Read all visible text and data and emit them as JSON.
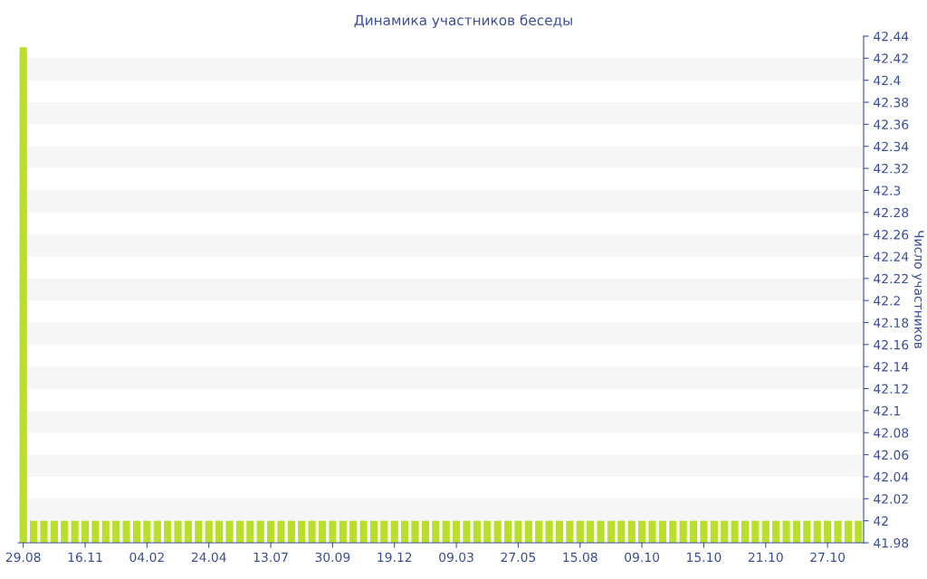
{
  "chart_data": {
    "type": "bar",
    "title": "Динамика участников беседы",
    "ylabel": "Число участников",
    "categories": [
      "29.08",
      null,
      null,
      null,
      null,
      null,
      "16.11",
      null,
      null,
      null,
      null,
      null,
      "04.02",
      null,
      null,
      null,
      null,
      null,
      "24.04",
      null,
      null,
      null,
      null,
      null,
      "13.07",
      null,
      null,
      null,
      null,
      null,
      "30.09",
      null,
      null,
      null,
      null,
      null,
      "19.12",
      null,
      null,
      null,
      null,
      null,
      "09.03",
      null,
      null,
      null,
      null,
      null,
      "27.05",
      null,
      null,
      null,
      null,
      null,
      "15.08",
      null,
      null,
      null,
      null,
      null,
      "09.10",
      null,
      null,
      null,
      null,
      null,
      "15.10",
      null,
      null,
      null,
      null,
      null,
      "21.10",
      null,
      null,
      null,
      null,
      null,
      "27.10",
      null,
      null,
      null
    ],
    "values": [
      42.43,
      42,
      42,
      42,
      42,
      42,
      42,
      42,
      42,
      42,
      42,
      42,
      42,
      42,
      42,
      42,
      42,
      42,
      42,
      42,
      42,
      42,
      42,
      42,
      42,
      42,
      42,
      42,
      42,
      42,
      42,
      42,
      42,
      42,
      42,
      42,
      42,
      42,
      42,
      42,
      42,
      42,
      42,
      42,
      42,
      42,
      42,
      42,
      42,
      42,
      42,
      42,
      42,
      42,
      42,
      42,
      42,
      42,
      42,
      42,
      42,
      42,
      42,
      42,
      42,
      42,
      42,
      42,
      42,
      42,
      42,
      42,
      42,
      42,
      42,
      42,
      42,
      42,
      42,
      42,
      42,
      42
    ],
    "color": "#bade2c",
    "ylim": [
      41.98,
      42.44
    ],
    "yticks": [
      41.98,
      42,
      42.02,
      42.04,
      42.06,
      42.08,
      42.1,
      42.12,
      42.14,
      42.16,
      42.18,
      42.2,
      42.22,
      42.24,
      42.26,
      42.28,
      42.3,
      42.32,
      42.34,
      42.36,
      42.38,
      42.4,
      42.42,
      42.44
    ],
    "bands": [
      {
        "axis": "y",
        "from": 42,
        "to": 42.02,
        "color": "#f6f6f6"
      },
      {
        "axis": "y",
        "from": 42.04,
        "to": 42.06,
        "color": "#f6f6f6"
      },
      {
        "axis": "y",
        "from": 42.08,
        "to": 42.1,
        "color": "#f6f6f6"
      },
      {
        "axis": "y",
        "from": 42.12,
        "to": 42.14,
        "color": "#f6f6f6"
      },
      {
        "axis": "y",
        "from": 42.16,
        "to": 42.18,
        "color": "#f6f6f6"
      },
      {
        "axis": "y",
        "from": 42.2,
        "to": 42.22,
        "color": "#f6f6f6"
      },
      {
        "axis": "y",
        "from": 42.24,
        "to": 42.26,
        "color": "#f6f6f6"
      },
      {
        "axis": "y",
        "from": 42.28,
        "to": 42.3,
        "color": "#f6f6f6"
      },
      {
        "axis": "y",
        "from": 42.32,
        "to": 42.34,
        "color": "#f6f6f6"
      },
      {
        "axis": "y",
        "from": 42.36,
        "to": 42.38,
        "color": "#f6f6f6"
      },
      {
        "axis": "y",
        "from": 42.4,
        "to": 42.42,
        "color": "#f6f6f6"
      }
    ],
    "legend": false
  }
}
